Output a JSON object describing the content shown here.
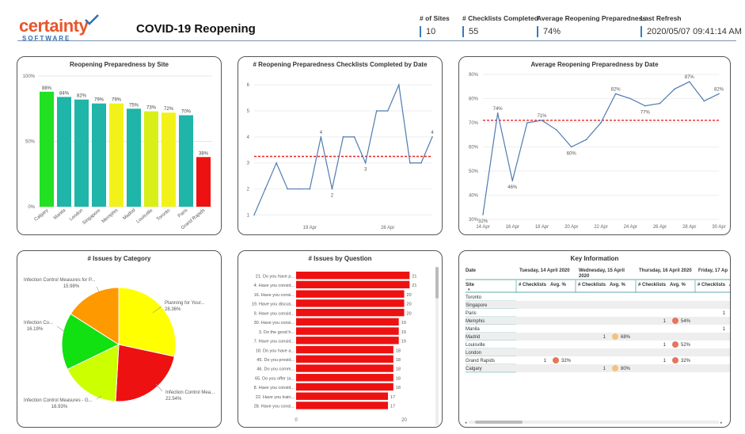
{
  "header": {
    "logo_main": "certainty",
    "logo_sub": "SOFTWARE",
    "title": "COVID-19 Reopening",
    "kpis": [
      {
        "label": "# of Sites",
        "value": "10"
      },
      {
        "label": "# Checklists Completed",
        "value": "55"
      },
      {
        "label": "Average Reopening Preparedness",
        "value": "74%"
      },
      {
        "label": "Last Refresh",
        "value": "2020/05/07 09:41:14 AM"
      }
    ]
  },
  "chart_data": [
    {
      "type": "bar",
      "title": "Reopening Preparedness by Site",
      "categories": [
        "Calgary",
        "Manila",
        "London",
        "Singapore",
        "Memphis",
        "Madrid",
        "Louisville",
        "Toronto",
        "Paris",
        "Grand Rapids"
      ],
      "values": [
        88,
        84,
        82,
        79,
        79,
        75,
        73,
        72,
        70,
        38
      ],
      "data_labels": [
        "88%",
        "84%",
        "82%",
        "79%",
        "79%",
        "75%",
        "73%",
        "72%",
        "70%",
        "38%"
      ],
      "colors": [
        "#22e022",
        "#1fb5a8",
        "#1fb5a8",
        "#1fb5a8",
        "#f2f21a",
        "#1fb5a8",
        "#d8f018",
        "#f2f21a",
        "#1fb5a8",
        "#ee1111"
      ],
      "yticks": [
        "0%",
        "50%",
        "100%"
      ],
      "ylim": [
        0,
        100
      ]
    },
    {
      "type": "line",
      "title": "# Reopening Preparedness Checklists Completed by Date",
      "values": [
        1,
        2,
        3,
        2,
        2,
        2,
        4,
        2,
        4,
        4,
        3,
        5,
        5,
        6,
        3,
        3,
        4
      ],
      "data_labels": {
        "6": "4",
        "7": "2",
        "10": "3",
        "16": "4"
      },
      "reference_line": 3.25,
      "yticks": [
        "1",
        "2",
        "3",
        "4",
        "5",
        "6"
      ],
      "xticks": [
        "19 Apr",
        "26 Apr"
      ],
      "ylim": [
        0.8,
        6.4
      ]
    },
    {
      "type": "line",
      "title": "Average Reopening Preparedness by Date",
      "values": [
        32,
        74,
        46,
        70,
        71,
        67,
        60,
        63,
        70,
        82,
        80,
        77,
        78,
        84,
        87,
        79,
        82
      ],
      "data_labels": {
        "0": "32%",
        "1": "74%",
        "2": "46%",
        "4": "71%",
        "6": "60%",
        "9": "82%",
        "11": "77%",
        "14": "87%",
        "16": "82%"
      },
      "reference_line": 71,
      "yticks": [
        "30%",
        "40%",
        "50%",
        "60%",
        "70%",
        "80%",
        "90%"
      ],
      "xticks": [
        "14 Apr",
        "16 Apr",
        "18 Apr",
        "20 Apr",
        "22 Apr",
        "24 Apr",
        "26 Apr",
        "28 Apr",
        "30 Apr"
      ],
      "ylim": [
        30,
        90
      ]
    },
    {
      "type": "pie",
      "title": "# Issues by Category",
      "slices": [
        {
          "label": "Planning for Your...",
          "percent": 28.36,
          "pct_label": "28.36%",
          "color": "#ffff00"
        },
        {
          "label": "Infection Control Mea...",
          "percent": 22.54,
          "pct_label": "22.54%",
          "color": "#ee1111"
        },
        {
          "label": "Infection Control Measures - G...",
          "percent": 16.93,
          "pct_label": "16.93%",
          "color": "#ccff00"
        },
        {
          "label": "Infection Co...",
          "percent": 16.19,
          "pct_label": "16.19%",
          "color": "#11e011"
        },
        {
          "label": "Infection Control Measures for P...",
          "percent": 15.98,
          "pct_label": "15.98%",
          "color": "#ff9900"
        }
      ]
    },
    {
      "type": "bar",
      "orientation": "horizontal",
      "title": "# Issues by Question",
      "categories": [
        "21. Do you have p...",
        "4. Have you consid...",
        "16. Have you consi...",
        "19. Have you discus...",
        "9. Have you consid...",
        "30. Have you consi...",
        "3. Do the good h...",
        "7. Have you consid...",
        "18. Do you have a...",
        "45. Do you provid...",
        "46. Do you comm...",
        "65. Do you offer (a...",
        "8. Have you consid...",
        "22. Have you train...",
        "28. Have you consi..."
      ],
      "values": [
        21,
        21,
        20,
        20,
        20,
        19,
        19,
        19,
        18,
        18,
        18,
        18,
        18,
        17,
        17
      ],
      "data_labels": [
        "21",
        "21",
        "20",
        "20",
        "20",
        "19",
        "19",
        "19",
        "18",
        "18",
        "18",
        "18",
        "18",
        "17",
        "17"
      ],
      "xticks": [
        "0",
        "20"
      ],
      "xlim": [
        0,
        23
      ]
    }
  ],
  "key_information": {
    "title": "Key Information",
    "date_header": "Date",
    "site_header": "Site",
    "checklists_header": "# Checklists",
    "avg_header": "Avg. %",
    "dates": [
      "Tuesday, 14 April 2020",
      "Wednesday, 15 April 2020",
      "Thursday, 16 April 2020",
      "Friday, 17 Ap"
    ],
    "rows": [
      {
        "site": "Toronto",
        "cells": [
          null,
          null,
          null,
          null
        ]
      },
      {
        "site": "Singapore",
        "cells": [
          null,
          null,
          null,
          null
        ]
      },
      {
        "site": "Paris",
        "cells": [
          null,
          null,
          null,
          {
            "count": "1"
          }
        ]
      },
      {
        "site": "Memphis",
        "cells": [
          null,
          null,
          {
            "count": "1",
            "avg": "54%",
            "color": "#e8755a"
          },
          null
        ]
      },
      {
        "site": "Manila",
        "cells": [
          null,
          null,
          null,
          {
            "count": "1"
          }
        ]
      },
      {
        "site": "Madrid",
        "cells": [
          null,
          {
            "count": "1",
            "avg": "68%",
            "color": "#f5c27a"
          },
          null,
          null
        ]
      },
      {
        "site": "Louisville",
        "cells": [
          null,
          null,
          {
            "count": "1",
            "avg": "52%",
            "color": "#e8755a"
          },
          null
        ]
      },
      {
        "site": "London",
        "cells": [
          null,
          null,
          null,
          null
        ]
      },
      {
        "site": "Grand Rapids",
        "cells": [
          {
            "count": "1",
            "avg": "32%",
            "color": "#e8755a"
          },
          null,
          {
            "count": "1",
            "avg": "32%",
            "color": "#e8755a"
          },
          null
        ]
      },
      {
        "site": "Calgary",
        "cells": [
          null,
          {
            "count": "1",
            "avg": "80%",
            "color": "#f5c27a"
          },
          null,
          null
        ]
      }
    ]
  }
}
